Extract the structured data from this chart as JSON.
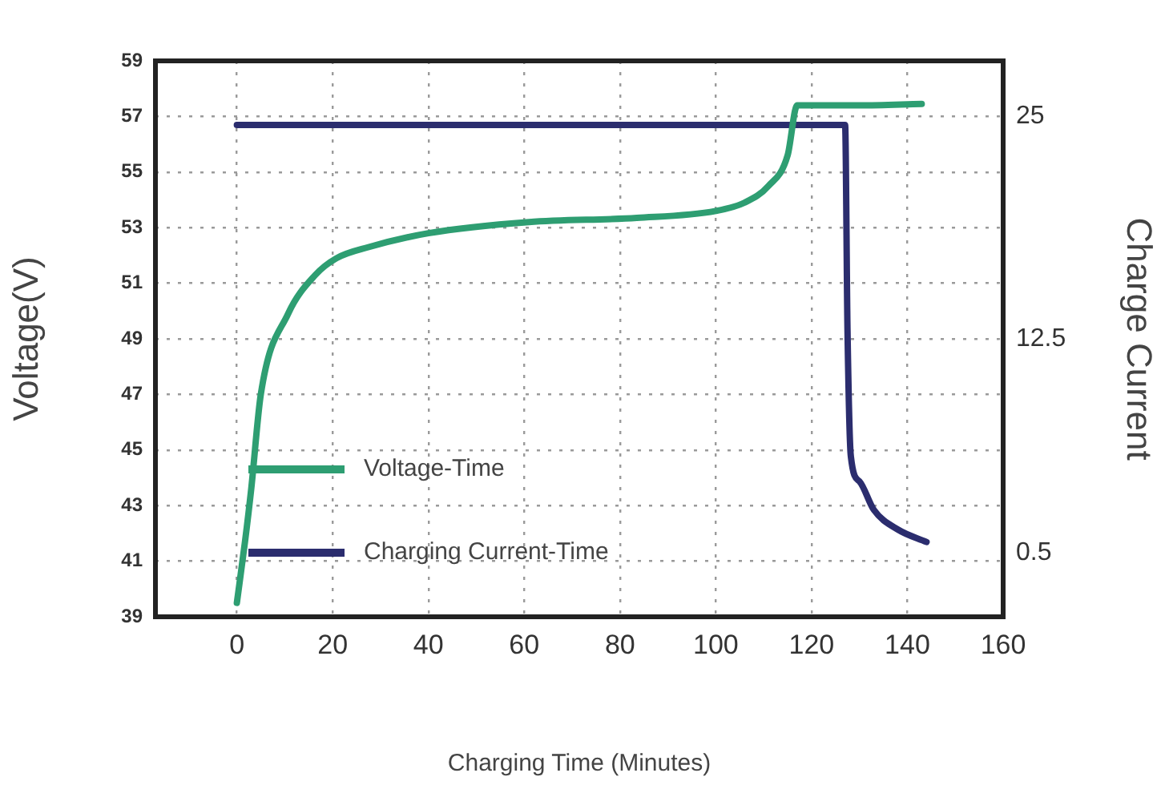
{
  "chart_data": {
    "type": "line",
    "xlabel": "Charging Time (Minutes)",
    "ylabel": "Voltage(V)",
    "y2label": "Charge Current",
    "xlim": [
      -17,
      160
    ],
    "xticks": [
      0,
      20,
      40,
      60,
      80,
      100,
      120,
      140,
      160
    ],
    "ylim": [
      39,
      59
    ],
    "yticks": [
      39,
      41,
      43,
      45,
      47,
      49,
      51,
      53,
      55,
      57,
      59
    ],
    "y2lim": [
      -3.1,
      28.1
    ],
    "y2ticks": [
      0.5,
      12.5,
      25
    ],
    "grid": true,
    "legend": "bottom left",
    "line_style": "solid",
    "marker": "none",
    "series": [
      {
        "name": "Voltage-Time",
        "color": "#2e9e72",
        "x": [
          0,
          1.7,
          3,
          5,
          10.7,
          16.4,
          20.8,
          27.5,
          40,
          61,
          83.5,
          100,
          106,
          111,
          115,
          117,
          130,
          143
        ],
        "values": [
          39.5,
          41.7,
          43.6,
          47,
          49.9,
          51.3,
          51.9,
          52.3,
          52.8,
          53.2,
          53.35,
          53.6,
          53.9,
          54.5,
          55.6,
          57.4,
          57.4,
          57.45
        ]
      },
      {
        "name": "Charging Current-Time",
        "color": "#2b2d6e",
        "axis": "y2",
        "x": [
          0,
          60,
          127,
          127.5,
          128.2,
          130,
          133,
          138,
          144
        ],
        "values": [
          24.5,
          24.5,
          24.5,
          13,
          5.9,
          4.5,
          2.9,
          1.8,
          1.1
        ]
      }
    ]
  }
}
